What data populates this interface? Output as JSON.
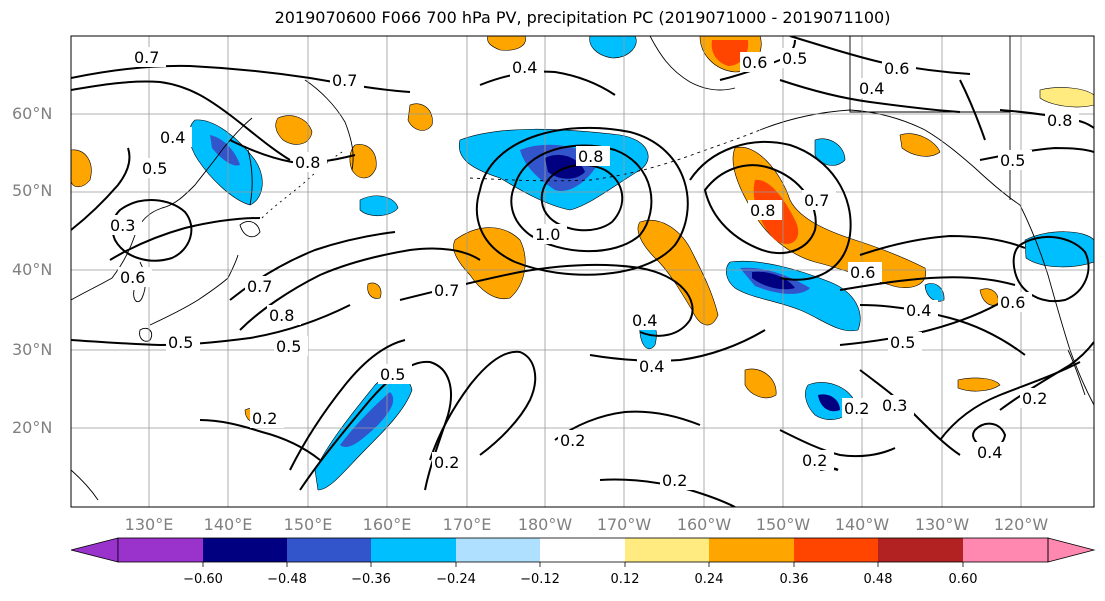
{
  "title": "2019070600 F066 700 hPa PV, precipitation PC (2019071000 - 2019071100)",
  "lat_labels": [
    "60°N",
    "50°N",
    "40°N",
    "30°N",
    "20°N"
  ],
  "lon_labels": [
    "130°E",
    "140°E",
    "150°E",
    "160°E",
    "170°E",
    "180°W",
    "170°W",
    "160°W",
    "150°W",
    "140°W",
    "130°W",
    "120°W"
  ],
  "colorbar": {
    "labels": [
      "−0.60",
      "−0.48",
      "−0.36",
      "−0.24",
      "−0.12",
      "0.12",
      "0.24",
      "0.36",
      "0.48",
      "0.60"
    ],
    "colors": [
      "#9933cc",
      "#000080",
      "#3355cc",
      "#00bfff",
      "#b0e0ff",
      "#ffffff",
      "#ffeb80",
      "#ffa500",
      "#ff4500",
      "#b22222",
      "#ff88b0"
    ]
  },
  "contour_labels": [
    "0.7",
    "0.4",
    "0.7",
    "0.4",
    "0.8",
    "0.8",
    "0.3",
    "0.6",
    "0.7",
    "0.8",
    "0.5",
    "0.5",
    "1.0",
    "0.7",
    "0.4",
    "0.5",
    "0.2",
    "0.2",
    "0.2",
    "0.4",
    "0.8",
    "0.7",
    "0.6",
    "0.4",
    "0.5",
    "0.6",
    "0.5",
    "0.2",
    "0.3",
    "0.2",
    "0.4",
    "0.2",
    "0.6",
    "0.4",
    "0.5",
    "0.8",
    "0.6",
    "0.5",
    "0.2"
  ],
  "colors": {
    "contour": "#000000",
    "grid": "#999999",
    "coast": "#000000"
  }
}
